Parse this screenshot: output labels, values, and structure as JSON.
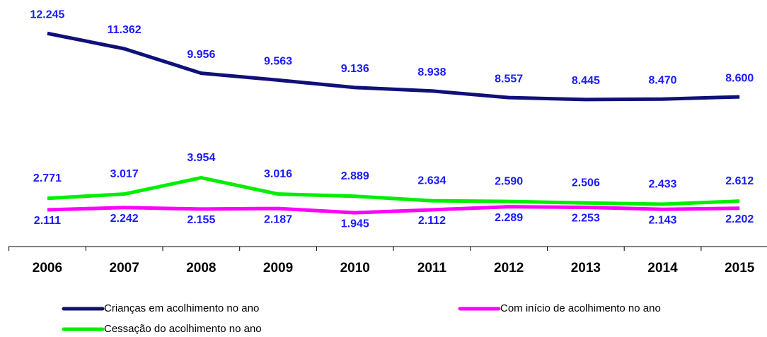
{
  "chart_data": {
    "type": "line",
    "categories": [
      "2006",
      "2007",
      "2008",
      "2009",
      "2010",
      "2011",
      "2012",
      "2013",
      "2014",
      "2015"
    ],
    "ylim": [
      0,
      14000
    ],
    "series": [
      {
        "name": "Crianças em acolhimento no ano",
        "color": "#10107a",
        "values": [
          12245,
          11362,
          9956,
          9563,
          9136,
          8938,
          8557,
          8445,
          8470,
          8600
        ],
        "value_labels": [
          "12.245",
          "11.362",
          "9.956",
          "9.563",
          "9.136",
          "8.938",
          "8.557",
          "8.445",
          "8.470",
          "8.600"
        ]
      },
      {
        "name": "Com início de acolhimento no ano",
        "color": "#ff00ff",
        "values": [
          2111,
          2242,
          2155,
          2187,
          1945,
          2112,
          2289,
          2253,
          2143,
          2202
        ],
        "value_labels": [
          "2.111",
          "2.242",
          "2.155",
          "2.187",
          "1.945",
          "2.112",
          "2.289",
          "2.253",
          "2.143",
          "2.202"
        ]
      },
      {
        "name": "Cessação do acolhimento no ano",
        "color": "#00ee00",
        "values": [
          2771,
          3017,
          3954,
          3016,
          2889,
          2634,
          2590,
          2506,
          2433,
          2612
        ],
        "value_labels": [
          "2.771",
          "3.017",
          "3.954",
          "3.016",
          "2.889",
          "2.634",
          "2.590",
          "2.506",
          "2.433",
          "2.612"
        ]
      }
    ]
  }
}
